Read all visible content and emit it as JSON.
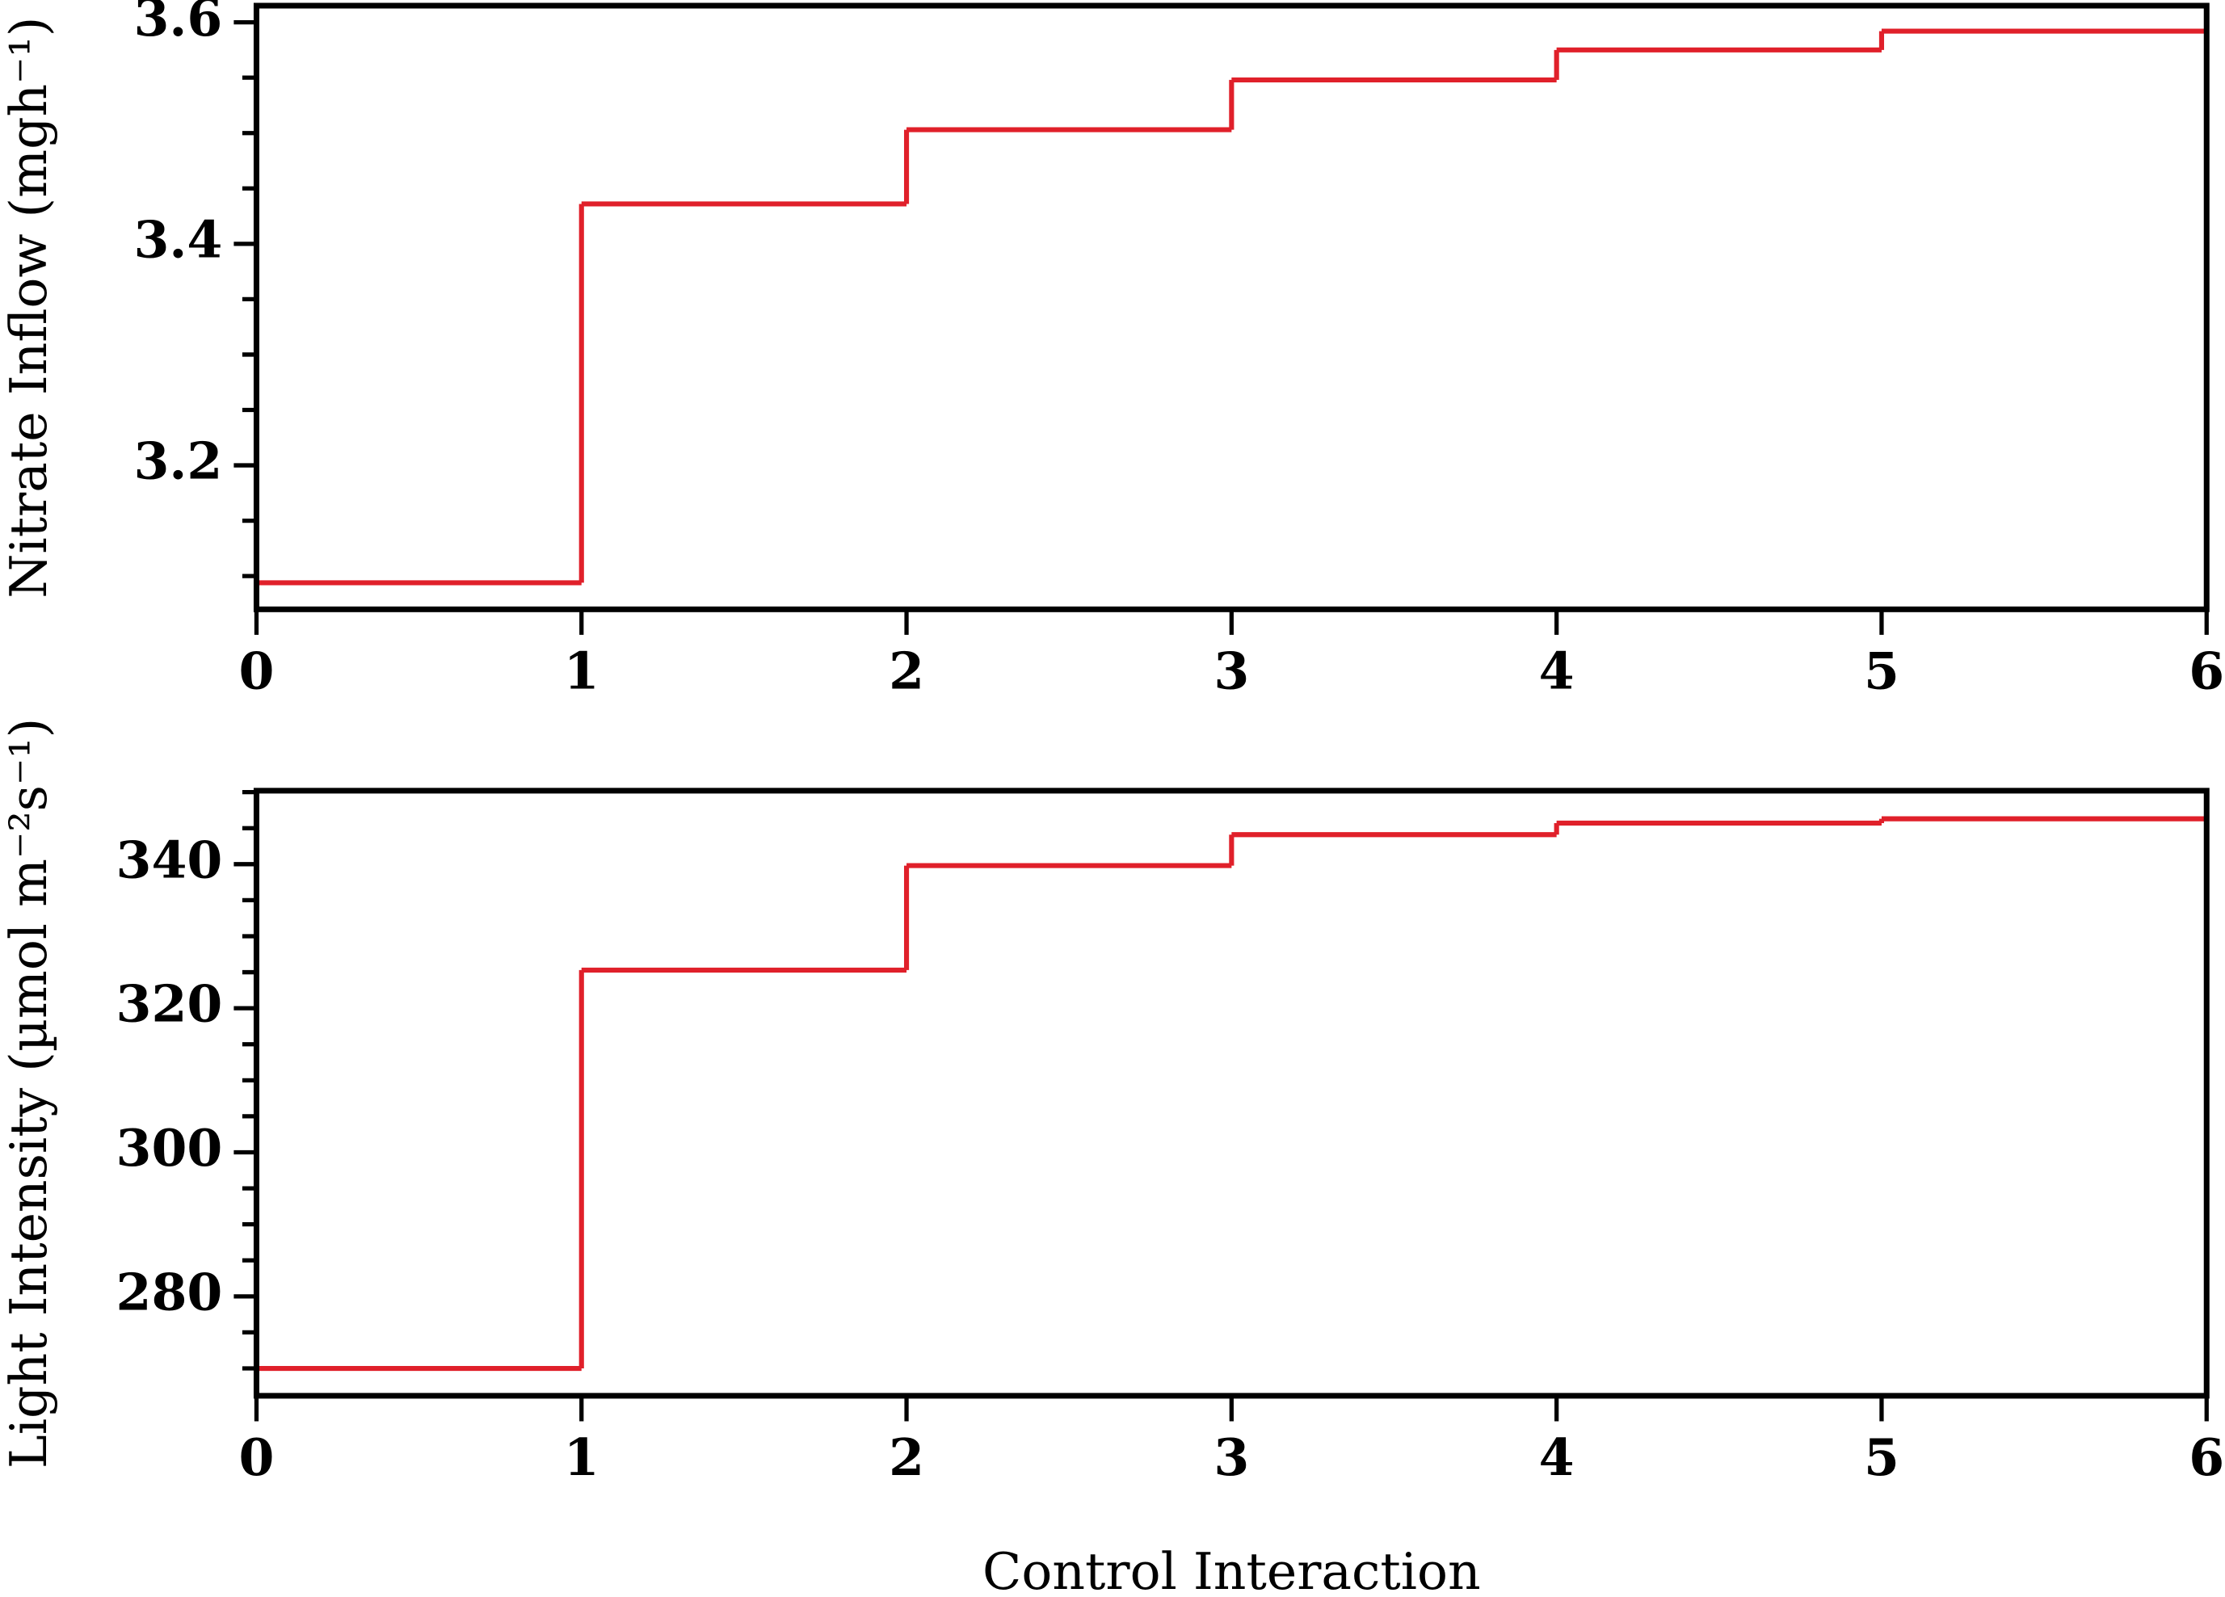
{
  "chart_data": [
    {
      "type": "step",
      "ylabel": "Nitrate Inflow (mgh⁻¹)",
      "edges": [
        0,
        1,
        2,
        3,
        4,
        5,
        6
      ],
      "values": [
        3.094,
        3.436,
        3.503,
        3.548,
        3.575,
        3.592
      ],
      "color": "#e0202a",
      "xlim": [
        0,
        6
      ],
      "xticks": [
        0,
        1,
        2,
        3,
        4,
        5,
        6
      ],
      "ylim": [
        3.07,
        3.615
      ],
      "yticks": [
        3.2,
        3.4,
        3.6
      ],
      "yminorticks": [
        3.1,
        3.15,
        3.25,
        3.3,
        3.35,
        3.45,
        3.5,
        3.55
      ]
    },
    {
      "type": "step",
      "ylabel": "Light Intensity (µmol m⁻²s⁻¹)",
      "xlabel": "Control Interaction",
      "edges": [
        0,
        1,
        2,
        3,
        4,
        5,
        6
      ],
      "values": [
        270,
        325.3,
        339.8,
        344.1,
        345.7,
        346.3
      ],
      "color": "#e0202a",
      "xlim": [
        0,
        6
      ],
      "xticks": [
        0,
        1,
        2,
        3,
        4,
        5,
        6
      ],
      "ylim": [
        266.2,
        350.2
      ],
      "yticks": [
        280,
        300,
        320,
        340
      ],
      "yminorticks": [
        270,
        275,
        285,
        290,
        295,
        305,
        310,
        315,
        325,
        330,
        335,
        345,
        350
      ]
    }
  ]
}
